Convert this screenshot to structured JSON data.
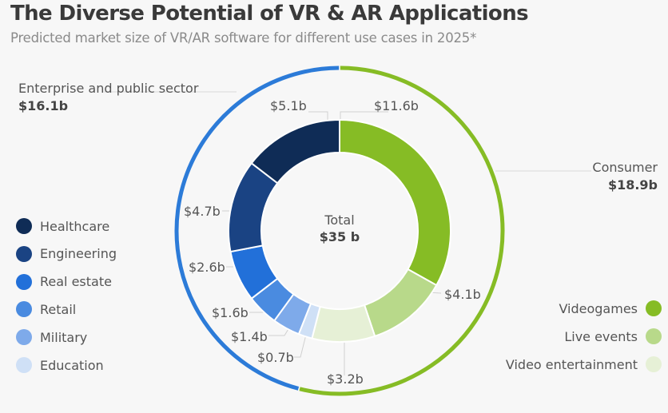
{
  "chart_data": {
    "type": "pie",
    "subtype": "donut",
    "title": "The Diverse Potential of VR & AR Applications",
    "subtitle": "Predicted market size of VR/AR software for different use cases in 2025*",
    "unit": "billion USD",
    "total": {
      "label": "Total",
      "value": 35,
      "display": "$35 b"
    },
    "slices": [
      {
        "name": "Videogames",
        "value": 11.6,
        "display": "$11.6b",
        "group": "Consumer",
        "color": "#86bc25"
      },
      {
        "name": "Live events",
        "value": 4.1,
        "display": "$4.1b",
        "group": "Consumer",
        "color": "#b8d98a"
      },
      {
        "name": "Video entertainment",
        "value": 3.2,
        "display": "$3.2b",
        "group": "Consumer",
        "color": "#e6f0d6"
      },
      {
        "name": "Education",
        "value": 0.7,
        "display": "$0.7b",
        "group": "Enterprise and public sector",
        "color": "#cfe0f6"
      },
      {
        "name": "Military",
        "value": 1.4,
        "display": "$1.4b",
        "group": "Enterprise and public sector",
        "color": "#7eaaea"
      },
      {
        "name": "Retail",
        "value": 1.6,
        "display": "$1.6b",
        "group": "Enterprise and public sector",
        "color": "#4a8be0"
      },
      {
        "name": "Real estate",
        "value": 2.6,
        "display": "$2.6b",
        "group": "Enterprise and public sector",
        "color": "#2270d9"
      },
      {
        "name": "Engineering",
        "value": 4.7,
        "display": "$4.7b",
        "group": "Enterprise and public sector",
        "color": "#1a4383"
      },
      {
        "name": "Healthcare",
        "value": 5.1,
        "display": "$5.1b",
        "group": "Enterprise and public sector",
        "color": "#0f2c56"
      }
    ],
    "groups": [
      {
        "name": "Consumer",
        "value": 18.9,
        "display": "$18.9b",
        "color": "#86bc25"
      },
      {
        "name": "Enterprise and public sector",
        "value": 16.1,
        "display": "$16.1b",
        "color": "#2c7bd8"
      }
    ],
    "legend": {
      "left": [
        "Healthcare",
        "Engineering",
        "Real estate",
        "Retail",
        "Military",
        "Education"
      ],
      "right": [
        "Videogames",
        "Live events",
        "Video entertainment"
      ]
    }
  }
}
